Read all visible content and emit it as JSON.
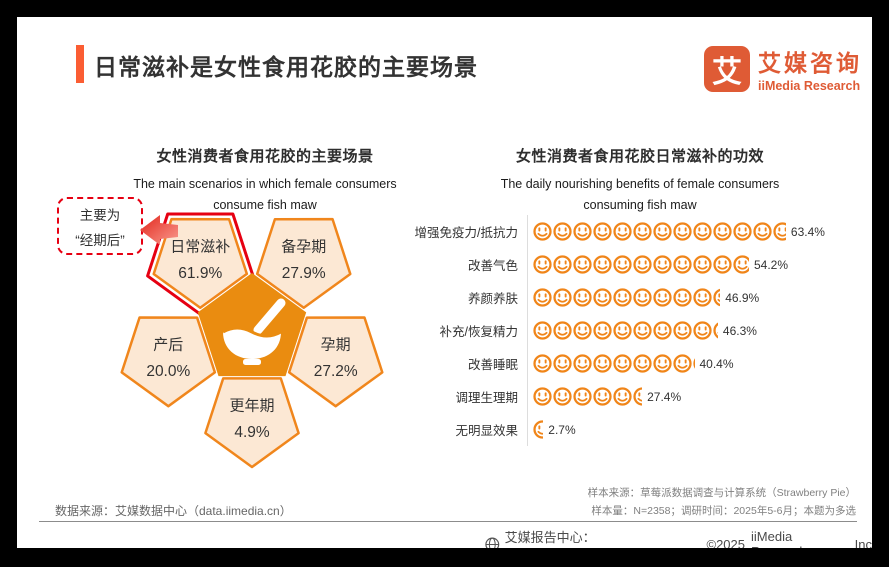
{
  "header": {
    "title": "日常滋补是女性食用花胶的主要场景",
    "logo": {
      "mark": "艾",
      "name_cn": "艾媒咨询",
      "name_en": "iiMedia Research"
    }
  },
  "colors": {
    "accent": "#FB5D33",
    "brand_orange": "#DF5B35",
    "petal_stroke": "#F0861C",
    "petal_fill": "#FCE8D4",
    "center_pentagon": "#EA8C10",
    "highlight_red": "#E60012",
    "smiley": "#F08519"
  },
  "chart_data": [
    {
      "type": "pictorial-flower",
      "title": "女性消费者食用花胶的主要场景",
      "subtitle_lines": [
        "The main scenarios in which female consumers",
        "consume fish maw"
      ],
      "categories": [
        "日常滋补",
        "备孕期",
        "孕期",
        "更年期",
        "产后"
      ],
      "values": [
        61.9,
        27.9,
        27.2,
        4.9,
        20.0
      ],
      "unit": "%",
      "highlighted_category": "日常滋补",
      "annotation": {
        "line1": "主要为",
        "line2": "“经期后”"
      },
      "center_icon": "bowl-with-spoon"
    },
    {
      "type": "pictogram-bar",
      "title": "女性消费者食用花胶日常滋补的功效",
      "subtitle_lines": [
        "The daily nourishing benefits of female consumers",
        "consuming fish maw"
      ],
      "categories": [
        "增强免疫力/抵抗力",
        "改善气色",
        "养颜养肤",
        "补充/恢复精力",
        "改善睡眠",
        "调理生理期",
        "无明显效果"
      ],
      "values": [
        63.4,
        54.2,
        46.9,
        46.3,
        40.4,
        27.4,
        2.7
      ],
      "unit": "%",
      "icon": "smiley-face",
      "percent_per_icon": 5
    }
  ],
  "footer": {
    "source_left": "数据来源：艾媒数据中心（data.iimedia.cn）",
    "sample_source": "样本来源：草莓派数据调查与计算系统（Strawberry Pie）",
    "sample_info": "样本量：N=2358；调研时间：2025年5-6月；本题为多选",
    "credit": "艾媒报告中心：report.iimedia.cn",
    "copyright": "©2025",
    "company": "iiMedia Research",
    "inc": "Inc"
  }
}
